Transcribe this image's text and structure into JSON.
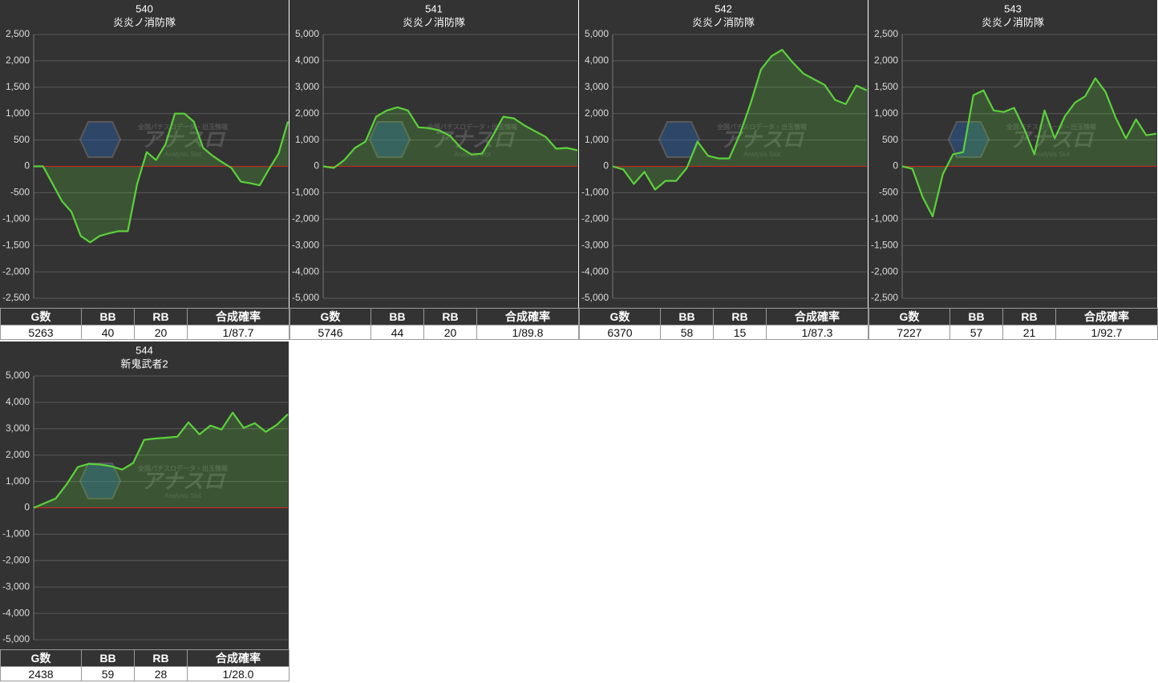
{
  "watermark": {
    "logo": "アナスロ",
    "tagline": "全国パチスロデータ・出玉情報",
    "subtitle": "Analysis Slot"
  },
  "chart_data": [
    {
      "type": "line",
      "title": "540",
      "subtitle": "炎炎ノ消防隊",
      "color": "#5cd13c",
      "grid": true,
      "values": [
        0,
        0,
        -330,
        -660,
        -860,
        -1320,
        -1440,
        -1320,
        -1270,
        -1230,
        -1230,
        -330,
        270,
        120,
        420,
        1000,
        1000,
        850,
        350,
        200,
        80,
        -30,
        -290,
        -320,
        -360,
        -50,
        240,
        850
      ],
      "ylim": [
        -2500,
        2500
      ],
      "yticks": [
        {
          "value": -2500,
          "label": "-2,500"
        },
        {
          "value": -2000,
          "label": "-2,000"
        },
        {
          "value": -1500,
          "label": "-1,500"
        },
        {
          "value": -1000,
          "label": "-1,000"
        },
        -500,
        0,
        500,
        {
          "value": 1000,
          "label": "1,000"
        },
        {
          "value": 1500,
          "label": "1,500"
        },
        {
          "value": 2000,
          "label": "2,000"
        },
        {
          "value": 2500,
          "label": "2,500"
        }
      ],
      "table": {
        "columns": [
          "G数",
          "BB",
          "RB",
          "合成確率"
        ],
        "values": [
          5263,
          40,
          20,
          "1/87.7"
        ]
      }
    },
    {
      "type": "line",
      "title": "541",
      "subtitle": "炎炎ノ消防隊",
      "color": "#5cd13c",
      "grid": true,
      "values": [
        0,
        -60,
        240,
        700,
        940,
        1880,
        2120,
        2240,
        2120,
        1480,
        1450,
        1360,
        1150,
        700,
        450,
        480,
        1150,
        1880,
        1820,
        1550,
        1330,
        1120,
        670,
        700,
        610
      ],
      "ylim": [
        -5000,
        5000
      ],
      "yticks": [
        {
          "value": -5000,
          "label": "-5,000"
        },
        {
          "value": -4000,
          "label": "-4,000"
        },
        {
          "value": -3000,
          "label": "-3,000"
        },
        {
          "value": -2000,
          "label": "-2,000"
        },
        {
          "value": -1000,
          "label": "-1,000"
        },
        0,
        {
          "value": 1000,
          "label": "1,000"
        },
        {
          "value": 2000,
          "label": "2,000"
        },
        {
          "value": 3000,
          "label": "3,000"
        },
        {
          "value": 4000,
          "label": "4,000"
        },
        {
          "value": 5000,
          "label": "5,000"
        }
      ],
      "table": {
        "columns": [
          "G数",
          "BB",
          "RB",
          "合成確率"
        ],
        "values": [
          5746,
          44,
          20,
          "1/89.8"
        ]
      }
    },
    {
      "type": "line",
      "title": "542",
      "subtitle": "炎炎ノ消防隊",
      "color": "#5cd13c",
      "grid": true,
      "values": [
        0,
        -120,
        -670,
        -210,
        -880,
        -550,
        -550,
        -60,
        940,
        400,
        300,
        300,
        1210,
        2360,
        3670,
        4180,
        4420,
        3940,
        3520,
        3300,
        3090,
        2520,
        2360,
        3060,
        2880
      ],
      "ylim": [
        -5000,
        5000
      ],
      "yticks": [
        {
          "value": -5000,
          "label": "-5,000"
        },
        {
          "value": -4000,
          "label": "-4,000"
        },
        {
          "value": -3000,
          "label": "-3,000"
        },
        {
          "value": -2000,
          "label": "-2,000"
        },
        {
          "value": -1000,
          "label": "-1,000"
        },
        0,
        {
          "value": 1000,
          "label": "1,000"
        },
        {
          "value": 2000,
          "label": "2,000"
        },
        {
          "value": 3000,
          "label": "3,000"
        },
        {
          "value": 4000,
          "label": "4,000"
        },
        {
          "value": 5000,
          "label": "5,000"
        }
      ],
      "table": {
        "columns": [
          "G数",
          "BB",
          "RB",
          "合成確率"
        ],
        "values": [
          6370,
          58,
          15,
          "1/87.3"
        ]
      }
    },
    {
      "type": "line",
      "title": "543",
      "subtitle": "炎炎ノ消防隊",
      "color": "#5cd13c",
      "grid": true,
      "values": [
        0,
        -45,
        -580,
        -950,
        -150,
        230,
        270,
        1350,
        1440,
        1060,
        1030,
        1110,
        710,
        230,
        1060,
        530,
        950,
        1210,
        1330,
        1670,
        1410,
        920,
        530,
        890,
        590,
        620
      ],
      "ylim": [
        -2500,
        2500
      ],
      "yticks": [
        {
          "value": -2500,
          "label": "-2,500"
        },
        {
          "value": -2000,
          "label": "-2,000"
        },
        {
          "value": -1500,
          "label": "-1,500"
        },
        {
          "value": -1000,
          "label": "-1,000"
        },
        -500,
        0,
        500,
        {
          "value": 1000,
          "label": "1,000"
        },
        {
          "value": 1500,
          "label": "1,500"
        },
        {
          "value": 2000,
          "label": "2,000"
        },
        {
          "value": 2500,
          "label": "2,500"
        }
      ],
      "table": {
        "columns": [
          "G数",
          "BB",
          "RB",
          "合成確率"
        ],
        "values": [
          7227,
          57,
          21,
          "1/92.7"
        ]
      }
    },
    {
      "type": "line",
      "title": "544",
      "subtitle": "新鬼武者2",
      "color": "#5cd13c",
      "grid": true,
      "values": [
        0,
        180,
        360,
        900,
        1550,
        1670,
        1640,
        1580,
        1450,
        1700,
        2580,
        2630,
        2660,
        2700,
        3240,
        2790,
        3120,
        2970,
        3610,
        3030,
        3210,
        2880,
        3150,
        3550
      ],
      "ylim": [
        -5000,
        5000
      ],
      "yticks": [
        {
          "value": -5000,
          "label": "-5,000"
        },
        {
          "value": -4000,
          "label": "-4,000"
        },
        {
          "value": -3000,
          "label": "-3,000"
        },
        {
          "value": -2000,
          "label": "-2,000"
        },
        {
          "value": -1000,
          "label": "-1,000"
        },
        0,
        {
          "value": 1000,
          "label": "1,000"
        },
        {
          "value": 2000,
          "label": "2,000"
        },
        {
          "value": 3000,
          "label": "3,000"
        },
        {
          "value": 4000,
          "label": "4,000"
        },
        {
          "value": 5000,
          "label": "5,000"
        }
      ],
      "table": {
        "columns": [
          "G数",
          "BB",
          "RB",
          "合成確率"
        ],
        "values": [
          2438,
          59,
          28,
          "1/28.0"
        ]
      }
    }
  ]
}
